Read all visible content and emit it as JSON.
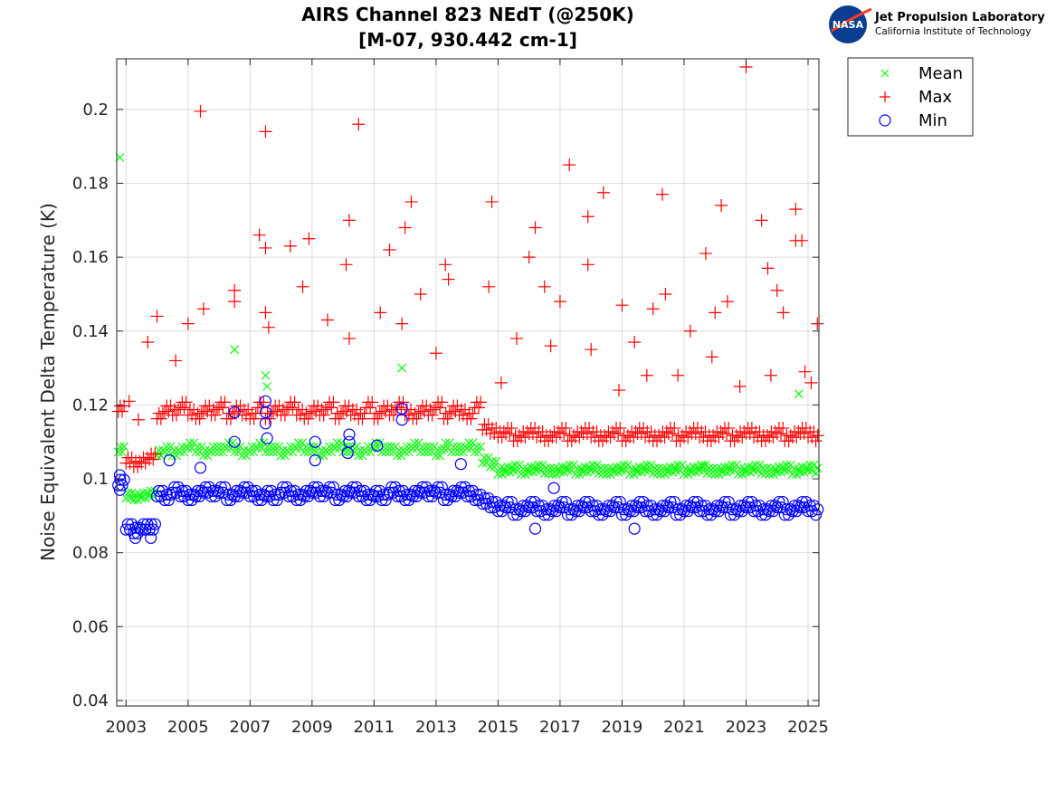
{
  "chart_data": {
    "type": "scatter",
    "title": [
      "AIRS Channel 823 NEdT (@250K)",
      "[M-07, 930.442 cm-1]"
    ],
    "xlabel": "",
    "ylabel": "Noise Equivalent Delta Temperature (K)",
    "xlim": [
      2002.7,
      2025.35
    ],
    "ylim": [
      0.0385,
      0.2137
    ],
    "xticks": [
      2003,
      2005,
      2007,
      2009,
      2011,
      2013,
      2015,
      2017,
      2019,
      2021,
      2023,
      2025
    ],
    "xtick_labels": [
      "2003",
      "2005",
      "2007",
      "2009",
      "2011",
      "2013",
      "2015",
      "2017",
      "2019",
      "2021",
      "2023",
      "2025"
    ],
    "yticks": [
      0.04,
      0.06,
      0.08,
      0.1,
      0.12,
      0.14,
      0.16,
      0.18,
      0.2
    ],
    "ytick_labels": [
      "0.04",
      "0.06",
      "0.08",
      "0.1",
      "0.12",
      "0.14",
      "0.16",
      "0.18",
      "0.2"
    ],
    "grid": true,
    "legend_placement": "outside-top-right",
    "x_start": 2002.75,
    "x_step": 0.25,
    "series": [
      {
        "name": "Mean",
        "marker": "x",
        "color": "#00ff00",
        "values": [
          0.108,
          0.0955,
          0.095,
          0.0955,
          0.096,
          0.107,
          0.108,
          0.107,
          0.108,
          0.109,
          0.108,
          0.107,
          0.108,
          0.108,
          0.109,
          0.108,
          0.107,
          0.108,
          0.109,
          0.108,
          0.108,
          0.107,
          0.108,
          0.109,
          0.108,
          0.108,
          0.107,
          0.108,
          0.109,
          0.108,
          0.108,
          0.107,
          0.108,
          0.109,
          0.108,
          0.108,
          0.107,
          0.108,
          0.109,
          0.108,
          0.108,
          0.107,
          0.109,
          0.108,
          0.108,
          0.109,
          0.108,
          0.105,
          0.104,
          0.102,
          0.1025,
          0.103,
          0.102,
          0.1025,
          0.103,
          0.1022,
          0.102,
          0.1025,
          0.103,
          0.102,
          0.1025,
          0.103,
          0.1022,
          0.102,
          0.1025,
          0.103,
          0.102,
          0.1025,
          0.103,
          0.1022,
          0.102,
          0.1025,
          0.103,
          0.102,
          0.1025,
          0.103,
          0.1022,
          0.102,
          0.1025,
          0.103,
          0.102,
          0.1025,
          0.103,
          0.1022,
          0.102,
          0.1025,
          0.103,
          0.102,
          0.1025,
          0.103,
          0.1022
        ],
        "outliers": [
          [
            2002.8,
            0.187
          ],
          [
            2006.5,
            0.135
          ],
          [
            2007.5,
            0.128
          ],
          [
            2007.55,
            0.125
          ],
          [
            2011.9,
            0.13
          ],
          [
            2024.7,
            0.123
          ],
          [
            2021.6,
            0.1035
          ]
        ]
      },
      {
        "name": "Max",
        "marker": "+",
        "color": "#ff0000",
        "values": [
          0.119,
          0.105,
          0.104,
          0.105,
          0.106,
          0.117,
          0.119,
          0.118,
          0.12,
          0.118,
          0.117,
          0.119,
          0.118,
          0.12,
          0.117,
          0.119,
          0.118,
          0.117,
          0.12,
          0.117,
          0.119,
          0.118,
          0.12,
          0.118,
          0.117,
          0.119,
          0.118,
          0.12,
          0.117,
          0.119,
          0.118,
          0.117,
          0.12,
          0.117,
          0.119,
          0.118,
          0.12,
          0.118,
          0.117,
          0.119,
          0.118,
          0.12,
          0.117,
          0.119,
          0.118,
          0.117,
          0.12,
          0.114,
          0.113,
          0.112,
          0.113,
          0.111,
          0.112,
          0.113,
          0.112,
          0.111,
          0.112,
          0.113,
          0.111,
          0.112,
          0.113,
          0.112,
          0.111,
          0.112,
          0.113,
          0.111,
          0.112,
          0.113,
          0.112,
          0.111,
          0.112,
          0.113,
          0.111,
          0.112,
          0.113,
          0.112,
          0.111,
          0.112,
          0.113,
          0.111,
          0.112,
          0.113,
          0.112,
          0.111,
          0.112,
          0.113,
          0.111,
          0.112,
          0.113,
          0.112,
          0.111
        ],
        "outliers": [
          [
            2005.4,
            0.1995
          ],
          [
            2007.5,
            0.194
          ],
          [
            2010.5,
            0.196
          ],
          [
            2023.0,
            0.2115
          ],
          [
            2017.3,
            0.185
          ],
          [
            2018.4,
            0.1775
          ],
          [
            2020.3,
            0.177
          ],
          [
            2022.2,
            0.174
          ],
          [
            2014.8,
            0.175
          ],
          [
            2012.2,
            0.175
          ],
          [
            2010.2,
            0.17
          ],
          [
            2023.5,
            0.17
          ],
          [
            2024.6,
            0.173
          ],
          [
            2024.6,
            0.1645
          ],
          [
            2024.8,
            0.1645
          ],
          [
            2007.3,
            0.166
          ],
          [
            2007.5,
            0.1625
          ],
          [
            2008.9,
            0.165
          ],
          [
            2008.3,
            0.163
          ],
          [
            2011.5,
            0.162
          ],
          [
            2016.2,
            0.168
          ],
          [
            2016.0,
            0.16
          ],
          [
            2017.9,
            0.171
          ],
          [
            2017.9,
            0.158
          ],
          [
            2021.7,
            0.161
          ],
          [
            2012.0,
            0.168
          ],
          [
            2013.3,
            0.158
          ],
          [
            2013.4,
            0.154
          ],
          [
            2010.1,
            0.158
          ],
          [
            2006.5,
            0.151
          ],
          [
            2006.5,
            0.148
          ],
          [
            2005.5,
            0.146
          ],
          [
            2008.7,
            0.152
          ],
          [
            2009.5,
            0.143
          ],
          [
            2014.7,
            0.152
          ],
          [
            2016.5,
            0.152
          ],
          [
            2023.7,
            0.157
          ],
          [
            2024.0,
            0.151
          ],
          [
            2024.2,
            0.145
          ],
          [
            2022.4,
            0.148
          ],
          [
            2021.2,
            0.14
          ],
          [
            2022.0,
            0.145
          ],
          [
            2020.4,
            0.15
          ],
          [
            2020.0,
            0.146
          ],
          [
            2019.0,
            0.147
          ],
          [
            2017.0,
            0.148
          ],
          [
            2015.6,
            0.138
          ],
          [
            2016.7,
            0.136
          ],
          [
            2018.0,
            0.135
          ],
          [
            2019.4,
            0.137
          ],
          [
            2025.3,
            0.142
          ],
          [
            2004.0,
            0.144
          ],
          [
            2004.6,
            0.132
          ],
          [
            2005.0,
            0.142
          ],
          [
            2003.7,
            0.137
          ],
          [
            2012.5,
            0.15
          ],
          [
            2011.2,
            0.145
          ],
          [
            2013.0,
            0.134
          ],
          [
            2007.5,
            0.145
          ],
          [
            2007.6,
            0.141
          ],
          [
            2010.2,
            0.138
          ],
          [
            2011.9,
            0.142
          ],
          [
            2021.9,
            0.133
          ],
          [
            2020.8,
            0.128
          ],
          [
            2022.8,
            0.125
          ],
          [
            2023.8,
            0.128
          ],
          [
            2024.9,
            0.129
          ],
          [
            2025.1,
            0.126
          ],
          [
            2003.1,
            0.121
          ],
          [
            2003.4,
            0.116
          ],
          [
            2018.9,
            0.124
          ],
          [
            2019.8,
            0.128
          ],
          [
            2015.1,
            0.126
          ]
        ]
      },
      {
        "name": "Min",
        "marker": "o",
        "color": "#0000ff",
        "values": [
          0.099,
          0.087,
          0.086,
          0.087,
          0.087,
          0.096,
          0.095,
          0.097,
          0.096,
          0.095,
          0.096,
          0.097,
          0.096,
          0.097,
          0.095,
          0.096,
          0.097,
          0.096,
          0.095,
          0.096,
          0.095,
          0.097,
          0.096,
          0.095,
          0.096,
          0.097,
          0.096,
          0.097,
          0.095,
          0.096,
          0.097,
          0.096,
          0.095,
          0.096,
          0.095,
          0.097,
          0.096,
          0.095,
          0.096,
          0.097,
          0.096,
          0.097,
          0.095,
          0.096,
          0.097,
          0.096,
          0.095,
          0.094,
          0.093,
          0.092,
          0.093,
          0.091,
          0.092,
          0.093,
          0.092,
          0.091,
          0.092,
          0.093,
          0.091,
          0.092,
          0.093,
          0.092,
          0.091,
          0.092,
          0.093,
          0.091,
          0.092,
          0.093,
          0.092,
          0.091,
          0.092,
          0.093,
          0.091,
          0.092,
          0.093,
          0.092,
          0.091,
          0.092,
          0.093,
          0.091,
          0.092,
          0.093,
          0.092,
          0.091,
          0.092,
          0.093,
          0.091,
          0.092,
          0.093,
          0.092,
          0.091
        ],
        "outliers": [
          [
            2006.5,
            0.118
          ],
          [
            2006.5,
            0.11
          ],
          [
            2007.5,
            0.121
          ],
          [
            2007.5,
            0.118
          ],
          [
            2007.5,
            0.115
          ],
          [
            2007.55,
            0.111
          ],
          [
            2010.2,
            0.112
          ],
          [
            2010.2,
            0.11
          ],
          [
            2010.15,
            0.107
          ],
          [
            2011.9,
            0.119
          ],
          [
            2011.9,
            0.116
          ],
          [
            2009.1,
            0.11
          ],
          [
            2009.1,
            0.105
          ],
          [
            2011.1,
            0.109
          ],
          [
            2005.4,
            0.103
          ],
          [
            2004.4,
            0.105
          ],
          [
            2013.8,
            0.104
          ],
          [
            2002.8,
            0.101
          ],
          [
            2002.8,
            0.097
          ],
          [
            2003.3,
            0.084
          ],
          [
            2003.8,
            0.084
          ],
          [
            2016.8,
            0.0975
          ],
          [
            2019.4,
            0.0865
          ],
          [
            2016.2,
            0.0865
          ]
        ]
      }
    ],
    "legend": [
      "Mean",
      "Max",
      "Min"
    ]
  },
  "logo": {
    "line1": "Jet Propulsion Laboratory",
    "line2": "California Institute of Technology",
    "badge": "NASA"
  }
}
